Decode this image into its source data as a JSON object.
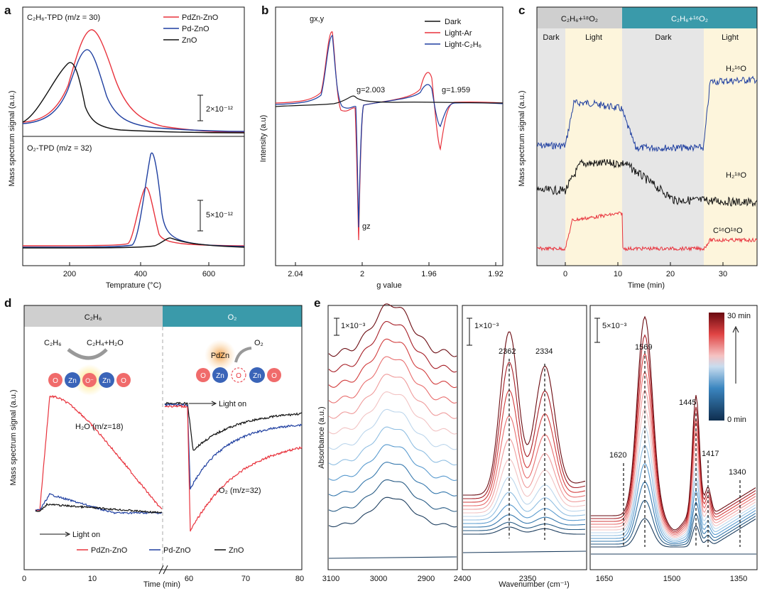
{
  "colors": {
    "pdzn": "#e8323c",
    "pd": "#1f3fa0",
    "zno": "#111111",
    "dark_band": "#e6e6e6",
    "light_band": "#fdf5dc",
    "teal": "#3a9aaa",
    "gray_hdr": "#cfcfcf"
  },
  "panels": {
    "a": {
      "letter": "a",
      "ylabel": "Mass spectrum signal (a.u.)",
      "xlabel": "Temprature (°C)",
      "top_title": "C₂H₆-TPD (m/z = 30)",
      "bottom_title": "O₂-TPD (m/z = 32)",
      "scale_top": "2×10⁻¹²",
      "scale_bottom": "5×10⁻¹²",
      "legend": [
        "PdZn-ZnO",
        "Pd-ZnO",
        "ZnO"
      ]
    },
    "b": {
      "letter": "b",
      "ylabel": "Intensity (a.u)",
      "xlabel": "g value",
      "legend": [
        "Dark",
        "Light-Ar",
        "Light-C₂H₆"
      ],
      "ann_gxy": "gx,y",
      "ann_g2003": "g=2.003",
      "ann_g1959": "g=1.959",
      "ann_gz": "gz"
    },
    "c": {
      "letter": "c",
      "ylabel": "Mass spectrum signal (a.u.)",
      "xlabel": "Time (min)",
      "hdr1": "C₂H₆+¹⁸O₂",
      "hdr2": "C₂H₆+¹⁶O₂",
      "bands": [
        "Dark",
        "Light",
        "Dark",
        "Light"
      ],
      "label_h216o": "H₂¹⁶O",
      "label_h218o": "H₂¹⁸O",
      "label_c16o18o": "C¹⁶O¹⁸O"
    },
    "d": {
      "letter": "d",
      "ylabel": "Mass spectrum signal (a.u.)",
      "xlabel": "Time (min)",
      "hdr1": "C₂H₆",
      "hdr2": "O₂",
      "scheme_left_reactant": "C₂H₆",
      "scheme_left_product": "C₂H₄+H₂O",
      "scheme_right_reactant": "O₂",
      "scheme_pdzn": "PdZn",
      "atom_o": "O",
      "atom_zn": "Zn",
      "atom_ominus": "O⁻",
      "label_h2o": "H₂O (m/z=18)",
      "label_o2": "O₂ (m/z=32)",
      "light_on": "Light on",
      "legend": [
        "PdZn-ZnO",
        "Pd-ZnO",
        "ZnO"
      ]
    },
    "e": {
      "letter": "e",
      "ylabel": "Absorbance (a.u.)",
      "xlabel": "Wavenumber (cm⁻¹)",
      "scale1": "1×10⁻³",
      "scale2": "1×10⁻³",
      "scale3": "5×10⁻³",
      "peaks2": [
        "2362",
        "2334"
      ],
      "peaks3": [
        "1620",
        "1569",
        "1445",
        "1417",
        "1340"
      ],
      "colorbar_top": "30 min",
      "colorbar_bottom": "0 min"
    }
  },
  "chart_data": [
    {
      "type": "line",
      "panel": "a-top",
      "title": "C₂H₆-TPD (m/z = 30)",
      "xlabel": "Temprature (°C)",
      "ylabel": "Mass spectrum signal (a.u.)",
      "xlim": [
        50,
        700
      ],
      "x_ticks": [
        200,
        400,
        600
      ],
      "peak_x_note": "peaks at temperature",
      "series": [
        {
          "name": "PdZn-ZnO",
          "peak_x": 255,
          "peak_rel": 1.0
        },
        {
          "name": "Pd-ZnO",
          "peak_x": 240,
          "peak_rel": 0.86
        },
        {
          "name": "ZnO",
          "peak_x": 195,
          "peak_rel": 0.66
        }
      ]
    },
    {
      "type": "line",
      "panel": "a-bottom",
      "title": "O₂-TPD (m/z = 32)",
      "xlim": [
        50,
        700
      ],
      "x_ticks": [
        200,
        400,
        600
      ],
      "series": [
        {
          "name": "PdZn-ZnO",
          "peak_x": 410,
          "peak_rel": 0.63
        },
        {
          "name": "Pd-ZnO",
          "peak_x": 432,
          "peak_rel": 1.0
        },
        {
          "name": "ZnO",
          "peak_x": 475,
          "peak_rel": 0.09
        }
      ]
    },
    {
      "type": "line",
      "panel": "b",
      "xlabel": "g value",
      "ylabel": "Intensity (a.u)",
      "xlim": [
        2.06,
        1.92
      ],
      "x_ticks": [
        2.04,
        2.0,
        1.96,
        1.92
      ],
      "features": {
        "gxy": 2.023,
        "g_2003": 2.003,
        "gz": 2.002,
        "g_1959": 1.959
      },
      "series": [
        {
          "name": "Dark"
        },
        {
          "name": "Light-Ar"
        },
        {
          "name": "Light-C₂H₆"
        }
      ]
    },
    {
      "type": "line",
      "panel": "c",
      "xlabel": "Time (min)",
      "xlim": [
        -7,
        35
      ],
      "x_ticks": [
        0,
        10,
        20,
        30
      ],
      "regions": [
        {
          "label": "Dark",
          "from": -7,
          "to": 0
        },
        {
          "label": "Light",
          "from": 0,
          "to": 10.5
        },
        {
          "label": "Dark",
          "from": 10.5,
          "to": 25.5
        },
        {
          "label": "Light",
          "from": 25.5,
          "to": 35
        }
      ],
      "series": [
        {
          "name": "H₂¹⁶O"
        },
        {
          "name": "H₂¹⁸O"
        },
        {
          "name": "C¹⁶O¹⁸O"
        }
      ]
    },
    {
      "type": "line",
      "panel": "d",
      "xlabel": "Time (min)",
      "x_ticks_left": [
        0,
        10
      ],
      "x_ticks_right": [
        60,
        70,
        80
      ],
      "series": [
        {
          "name": "PdZn-ZnO"
        },
        {
          "name": "Pd-ZnO"
        },
        {
          "name": "ZnO"
        }
      ]
    },
    {
      "type": "line",
      "panel": "e",
      "xlabel": "Wavenumber (cm⁻¹)",
      "ylabel": "Absorbance (a.u.)",
      "sub_ranges": [
        {
          "xlim": [
            3100,
            2830
          ],
          "x_ticks": [
            3100,
            3000,
            2900
          ]
        },
        {
          "xlim": [
            2400,
            2305
          ],
          "x_ticks": [
            2400,
            2350
          ],
          "peaks": [
            2362,
            2334
          ]
        },
        {
          "xlim": [
            1690,
            1310
          ],
          "x_ticks": [
            1650,
            1500,
            1350
          ],
          "peaks": [
            1620,
            1569,
            1445,
            1417,
            1340
          ]
        }
      ],
      "time_range_min": [
        0,
        30
      ],
      "curves": 12
    }
  ]
}
